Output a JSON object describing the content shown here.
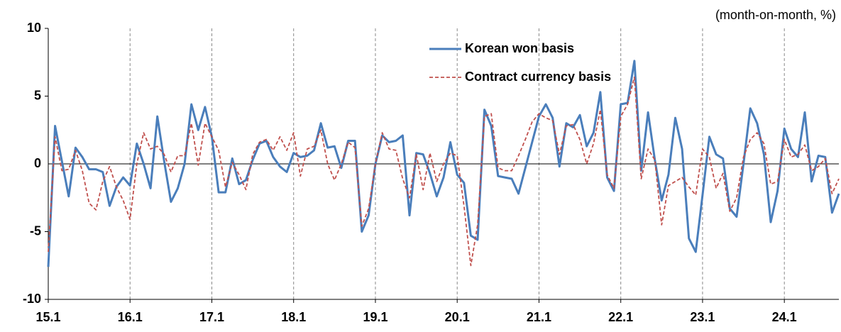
{
  "chart_data": {
    "type": "line",
    "unit_label": "(month-on-month,  %)",
    "categories": [
      "15.1",
      null,
      null,
      null,
      null,
      null,
      null,
      null,
      null,
      null,
      null,
      null,
      "16.1",
      null,
      null,
      null,
      null,
      null,
      null,
      null,
      null,
      null,
      null,
      null,
      "17.1",
      null,
      null,
      null,
      null,
      null,
      null,
      null,
      null,
      null,
      null,
      null,
      "18.1",
      null,
      null,
      null,
      null,
      null,
      null,
      null,
      null,
      null,
      null,
      null,
      "19.1",
      null,
      null,
      null,
      null,
      null,
      null,
      null,
      null,
      null,
      null,
      null,
      "20.1",
      null,
      null,
      null,
      null,
      null,
      null,
      null,
      null,
      null,
      null,
      null,
      "21.1",
      null,
      null,
      null,
      null,
      null,
      null,
      null,
      null,
      null,
      null,
      null,
      "22.1",
      null,
      null,
      null,
      null,
      null,
      null,
      null,
      null,
      null,
      null,
      null,
      "23.1",
      null,
      null,
      null,
      null,
      null,
      null,
      null,
      null,
      null,
      null,
      null,
      "24.1",
      null,
      null,
      null,
      null,
      null,
      null,
      null,
      null
    ],
    "series": [
      {
        "name": "Korean won basis",
        "color": "#4a7ebb",
        "style": "solid",
        "values": [
          -7.6,
          2.8,
          0.2,
          -2.4,
          1.2,
          0.5,
          -0.4,
          -0.4,
          -0.6,
          -3.1,
          -1.7,
          -1.0,
          -1.6,
          1.5,
          0.0,
          -1.8,
          3.5,
          0.2,
          -2.8,
          -1.8,
          0.0,
          4.4,
          2.5,
          4.2,
          2.0,
          -2.1,
          -2.1,
          0.4,
          -1.5,
          -1.2,
          0.3,
          1.5,
          1.7,
          0.5,
          -0.2,
          -0.6,
          0.8,
          0.5,
          0.6,
          1.0,
          3.0,
          1.2,
          1.3,
          -0.3,
          1.7,
          1.7,
          -5.0,
          -3.8,
          0.0,
          2.1,
          1.6,
          1.7,
          2.1,
          -3.8,
          0.8,
          0.7,
          -0.7,
          -2.4,
          -1.0,
          1.6,
          -0.8,
          -1.4,
          -5.3,
          -5.6,
          4.0,
          2.8,
          -0.9,
          -1.0,
          -1.1,
          -2.2,
          -0.3,
          1.6,
          3.5,
          4.4,
          3.4,
          -0.2,
          3.0,
          2.7,
          3.6,
          1.3,
          2.3,
          5.3,
          -1.0,
          -2.0,
          4.4,
          4.5,
          7.6,
          -0.5,
          3.8,
          0.3,
          -2.7,
          -0.8,
          3.4,
          1.1,
          -5.5,
          -6.5,
          -2.3,
          2.0,
          0.7,
          0.4,
          -3.3,
          -3.9,
          0.0,
          4.1,
          3.0,
          0.7,
          -4.3,
          -2.0,
          2.6,
          1.1,
          0.5,
          3.8,
          -1.3,
          0.6,
          0.5,
          -3.6,
          -2.2
        ]
      },
      {
        "name": "Contract currency basis",
        "color": "#c0504d",
        "style": "dashed",
        "values": [
          -6.5,
          2.0,
          -0.5,
          -0.4,
          1.0,
          -0.5,
          -2.9,
          -3.4,
          -1.3,
          -0.2,
          -1.7,
          -2.7,
          -4.1,
          0.0,
          2.3,
          1.1,
          1.3,
          0.7,
          -0.6,
          0.6,
          0.6,
          3.0,
          -0.1,
          3.0,
          2.0,
          1.0,
          -1.7,
          0.1,
          -0.8,
          -1.9,
          0.7,
          1.6,
          1.8,
          1.0,
          2.0,
          1.0,
          2.3,
          -0.9,
          1.1,
          1.3,
          2.5,
          0.0,
          -1.2,
          0.0,
          1.6,
          1.2,
          -4.6,
          -3.3,
          0.0,
          2.3,
          1.1,
          1.0,
          -1.1,
          -2.5,
          0.7,
          -1.9,
          0.8,
          -1.3,
          0.0,
          0.8,
          0.6,
          -3.1,
          -7.5,
          -4.5,
          3.5,
          3.7,
          -0.3,
          -0.5,
          -0.5,
          0.6,
          1.8,
          3.1,
          3.7,
          3.4,
          3.2,
          0.7,
          2.8,
          2.9,
          1.8,
          0.0,
          1.5,
          4.0,
          -0.8,
          -1.8,
          3.5,
          4.4,
          6.4,
          -1.1,
          1.1,
          0.3,
          -4.5,
          -1.6,
          -1.3,
          -1.0,
          -1.7,
          -2.3,
          1.1,
          0.5,
          -1.8,
          -0.7,
          -3.5,
          -2.5,
          0.5,
          1.8,
          2.3,
          1.5,
          -1.5,
          -1.3,
          1.8,
          0.5,
          0.7,
          1.4,
          -0.5,
          -0.2,
          0.4,
          -2.2,
          -1.1
        ]
      }
    ],
    "ylim": [
      -10,
      10
    ],
    "yticks": [
      -10,
      -5,
      0,
      5,
      10
    ],
    "grid_x": true
  }
}
